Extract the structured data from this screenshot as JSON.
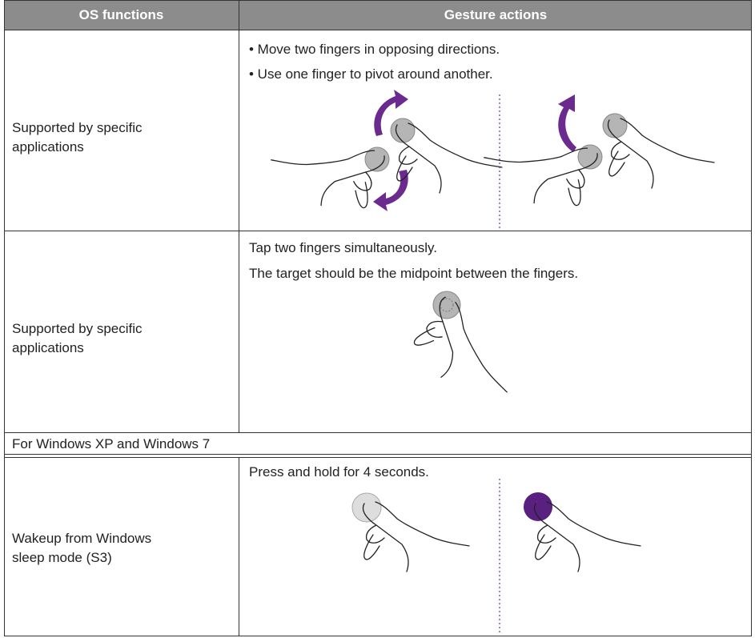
{
  "table": {
    "headers": [
      "OS functions",
      "Gesture actions"
    ],
    "rows": [
      {
        "function": "Supported by specific applications",
        "gestures": [
          "• Move two fingers in opposing directions.",
          "• Use one finger to pivot around another."
        ]
      },
      {
        "function": "Supported by specific applications",
        "gestures": [
          "Tap two fingers simultaneously.",
          "The target should be the midpoint between the fingers."
        ]
      }
    ],
    "section_heading": "For Windows XP and Windows 7",
    "section_rows": [
      {
        "function": "Wakeup from Windows sleep mode (S3)",
        "gestures": [
          "Press and hold for 4 seconds."
        ]
      }
    ]
  }
}
